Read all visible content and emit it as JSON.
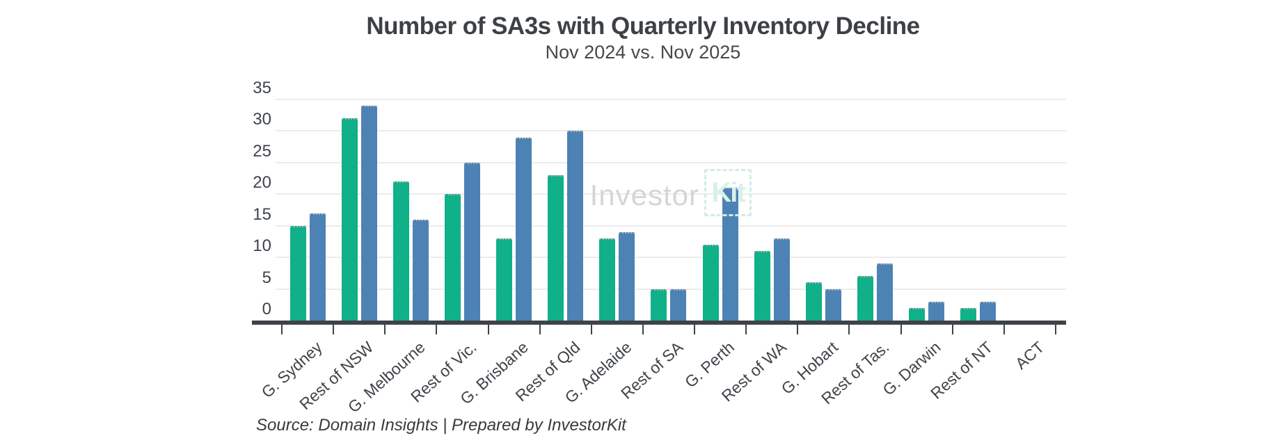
{
  "chart_data": {
    "type": "bar",
    "title": "Number of SA3s with Quarterly Inventory Decline",
    "subtitle": "Nov 2024 vs. Nov 2025",
    "categories": [
      "G. Sydney",
      "Rest of NSW",
      "G. Melbourne",
      "Rest of Vic.",
      "G. Brisbane",
      "Rest of Qld",
      "G. Adelaide",
      "Rest of SA",
      "G. Perth",
      "Rest of WA",
      "G. Hobart",
      "Rest of Tas.",
      "G. Darwin",
      "Rest of NT",
      "ACT"
    ],
    "series": [
      {
        "name": "Nov 2024",
        "color": "#10b089",
        "values": [
          15,
          32,
          22,
          20,
          13,
          23,
          13,
          5,
          12,
          11,
          6,
          7,
          2,
          2,
          0
        ]
      },
      {
        "name": "Nov 2025",
        "color": "#4d82b5",
        "values": [
          17,
          34,
          16,
          25,
          29,
          30,
          14,
          5,
          21,
          13,
          5,
          9,
          3,
          3,
          0
        ]
      }
    ],
    "ylim": [
      0,
      35
    ],
    "yticks": [
      0,
      5,
      10,
      15,
      20,
      25,
      30,
      35
    ],
    "grid": "horizontal",
    "legend_position": "none",
    "source": "Source: Domain Insights | Prepared by InvestorKit",
    "watermark": {
      "text": "Investor",
      "logo_text": "Kit"
    },
    "colors": {
      "grid": "#ececec",
      "axis": "#3f4247",
      "label": "#3f4449",
      "title": "#3d4146"
    }
  }
}
